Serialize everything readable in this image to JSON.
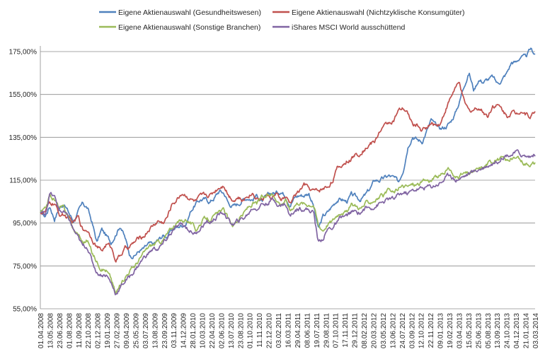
{
  "chart_data": {
    "type": "line",
    "title": "",
    "xlabel": "",
    "ylabel": "",
    "ylim": [
      55,
      180
    ],
    "grid": "horizontal",
    "legend_position": "top",
    "y_ticks": [
      {
        "value": 55,
        "label": "55,00%"
      },
      {
        "value": 75,
        "label": "75,00%"
      },
      {
        "value": 95,
        "label": "95,00%"
      },
      {
        "value": 115,
        "label": "115,00%"
      },
      {
        "value": 135,
        "label": "135,00%"
      },
      {
        "value": 155,
        "label": "155,00%"
      },
      {
        "value": 175,
        "label": "175,00%"
      }
    ],
    "x_tick_labels": [
      "01.04.2008",
      "13.05.2008",
      "23.06.2008",
      "01.08.2008",
      "11.09.2008",
      "22.10.2008",
      "02.12.2008",
      "19.01.2009",
      "27.02.2009",
      "09.04.2009",
      "25.05.2009",
      "03.07.2009",
      "13.08.2009",
      "23.09.2009",
      "03.11.2009",
      "14.12.2009",
      "28.01.2010",
      "10.03.2010",
      "22.04.2010",
      "02.06.2010",
      "13.07.2010",
      "23.08.2010",
      "01.10.2010",
      "11.11.2010",
      "22.12.2010",
      "03.02.2011",
      "16.03.2011",
      "29.04.2011",
      "08.06.2011",
      "19.07.2011",
      "29.08.2011",
      "07.10.2011",
      "17.11.2011",
      "29.12.2011",
      "08.02.2012",
      "20.03.2012",
      "03.05.2012",
      "13.06.2012",
      "24.07.2012",
      "03.09.2012",
      "12.10.2012",
      "22.11.2012",
      "09.01.2013",
      "19.02.2013",
      "03.04.2013",
      "15.05.2013",
      "25.06.2013",
      "05.08.2013",
      "13.09.2013",
      "24.10.2013",
      "04.12.2013",
      "21.01.2014",
      "03.03.2014"
    ],
    "series": [
      {
        "name": "Eigene Aktienauswahl (Gesundheitswesen)",
        "color": "#4F81BD",
        "values": [
          100,
          98,
          103,
          97,
          102,
          104,
          100,
          96,
          100,
          104,
          102,
          95,
          86,
          92,
          89,
          86,
          90,
          94,
          88,
          80,
          80,
          82,
          83,
          85,
          85,
          87,
          89,
          89,
          92,
          93,
          94,
          95,
          101,
          104,
          106,
          106,
          105,
          107,
          110,
          109,
          104,
          103,
          104,
          106,
          107,
          106,
          108,
          105,
          107,
          109,
          109,
          110,
          108,
          104,
          107,
          108,
          108,
          109,
          103,
          92,
          98,
          100,
          103,
          106,
          106,
          105,
          108,
          107,
          106,
          108,
          111,
          115,
          115,
          116,
          117,
          116,
          114,
          120,
          131,
          136,
          134,
          133,
          138,
          143,
          140,
          139,
          140,
          142,
          146,
          152,
          160,
          165,
          157,
          162,
          161,
          162,
          163,
          160,
          162,
          165,
          170,
          170,
          173,
          172,
          176,
          174
        ]
      },
      {
        "name": "Eigene Aktienauswahl (Nichtzyklische Konsumgüter)",
        "color": "#C0504D",
        "values": [
          100,
          100,
          104,
          104,
          99,
          99,
          97,
          95,
          98,
          92,
          92,
          88,
          84,
          82,
          85,
          84,
          78,
          80,
          83,
          84,
          86,
          88,
          89,
          92,
          94,
          96,
          95,
          98,
          104,
          106,
          109,
          108,
          106,
          105,
          107,
          108,
          108,
          110,
          112,
          113,
          108,
          106,
          107,
          105,
          108,
          109,
          107,
          106,
          108,
          107,
          108,
          106,
          107,
          104,
          108,
          110,
          113,
          111,
          110,
          110,
          111,
          112,
          115,
          120,
          122,
          124,
          125,
          127,
          128,
          130,
          132,
          133,
          138,
          140,
          142,
          143,
          147,
          148,
          146,
          141,
          141,
          138,
          140,
          141,
          141,
          142,
          148,
          153,
          158,
          160,
          151,
          147,
          148,
          149,
          147,
          145,
          150,
          150,
          148,
          145,
          147,
          146,
          148,
          146,
          145,
          147
        ]
      },
      {
        "name": "Eigene Aktienauswahl (Sonstige Branchen)",
        "color": "#9BBB59",
        "values": [
          100,
          101,
          108,
          106,
          102,
          102,
          98,
          92,
          90,
          86,
          87,
          81,
          77,
          74,
          73,
          69,
          62,
          66,
          70,
          73,
          75,
          78,
          81,
          84,
          85,
          86,
          87,
          90,
          93,
          95,
          96,
          97,
          95,
          92,
          95,
          97,
          97,
          98,
          100,
          101,
          96,
          94,
          97,
          99,
          102,
          104,
          104,
          107,
          107,
          109,
          107,
          104,
          106,
          101,
          104,
          105,
          104,
          104,
          104,
          94,
          92,
          95,
          96,
          99,
          101,
          100,
          103,
          103,
          102,
          104,
          105,
          106,
          107,
          108,
          110,
          109,
          111,
          112,
          112,
          113,
          113,
          114,
          115,
          115,
          116,
          117,
          119,
          120,
          116,
          117,
          118,
          118,
          119,
          120,
          121,
          123,
          124,
          125,
          125,
          124,
          125,
          125,
          124,
          123,
          123,
          123
        ]
      },
      {
        "name": "iShares MSCI World ausschüttend",
        "color": "#8064A2",
        "values": [
          100,
          99,
          109,
          107,
          101,
          100,
          97,
          92,
          88,
          84,
          84,
          77,
          72,
          71,
          71,
          67,
          62,
          65,
          68,
          70,
          73,
          76,
          79,
          81,
          83,
          83,
          85,
          88,
          91,
          93,
          94,
          93,
          91,
          90,
          93,
          95,
          95,
          97,
          99,
          100,
          96,
          94,
          96,
          97,
          99,
          102,
          102,
          104,
          104,
          106,
          105,
          103,
          104,
          98,
          101,
          102,
          102,
          101,
          100,
          86,
          88,
          92,
          93,
          95,
          98,
          98,
          100,
          100,
          100,
          102,
          102,
          103,
          104,
          105,
          106,
          106,
          108,
          109,
          109,
          110,
          111,
          111,
          112,
          112,
          113,
          114,
          116,
          118,
          115,
          116,
          117,
          118,
          119,
          120,
          121,
          122,
          123,
          124,
          126,
          127,
          127,
          128,
          127,
          126,
          126,
          127
        ]
      }
    ]
  }
}
